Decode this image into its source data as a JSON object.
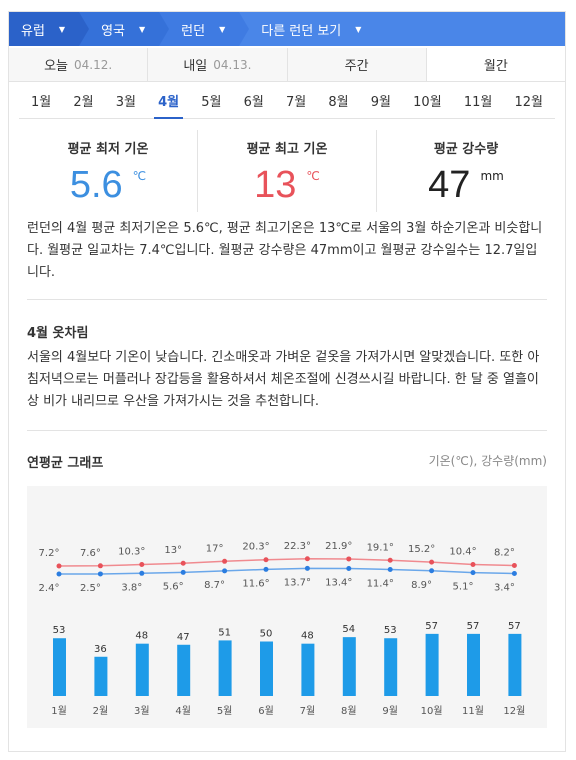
{
  "breadcrumb": [
    {
      "label": "유럽"
    },
    {
      "label": "영국"
    },
    {
      "label": "런던"
    },
    {
      "label": "다른 런던 보기"
    }
  ],
  "day_tabs": [
    {
      "label": "오늘",
      "date": "04.12."
    },
    {
      "label": "내일",
      "date": "04.13."
    },
    {
      "label": "주간",
      "date": ""
    },
    {
      "label": "월간",
      "date": ""
    }
  ],
  "months": [
    "1월",
    "2월",
    "3월",
    "4월",
    "5월",
    "6월",
    "7월",
    "8월",
    "9월",
    "10월",
    "11월",
    "12월"
  ],
  "active_month": "4월",
  "summary": {
    "min": {
      "label": "평균 최저 기온",
      "value": "5.6",
      "unit": "℃"
    },
    "max": {
      "label": "평균 최고 기온",
      "value": "13",
      "unit": "℃"
    },
    "rain": {
      "label": "평균 강수량",
      "value": "47",
      "unit": "mm"
    }
  },
  "description": "런던의 4월 평균 최저기온은 5.6℃, 평균 최고기온은 13℃로 서울의 3월 하순기온과 비슷합니다. 월평균 일교차는 7.4℃입니다. 월평균 강수량은 47mm이고 월평균 강수일수는 12.7일입니다.",
  "clothing": {
    "title": "4월 옷차림",
    "text": "서울의 4월보다 기온이 낮습니다. 긴소매옷과 가벼운 겉옷을 가져가시면 알맞겠습니다. 또한 아침저녁으로는 머플러나 장갑등을 활용하셔서 체온조절에 신경쓰시길 바랍니다. 한 달 중 열흘이상 비가 내리므로 우산을 가져가시는 것을 추천합니다."
  },
  "graph": {
    "title": "연평균 그래프",
    "note": "기온(℃), 강수량(mm)"
  },
  "colors": {
    "accent": "#2b62c9",
    "max_line": "#f08a8f",
    "min_line": "#6aa7ea",
    "bar": "#1e9be8"
  },
  "chart_data": {
    "type": "bar",
    "categories": [
      "1월",
      "2월",
      "3월",
      "4월",
      "5월",
      "6월",
      "7월",
      "8월",
      "9월",
      "10월",
      "11월",
      "12월"
    ],
    "series": [
      {
        "name": "최고 기온",
        "type": "line",
        "values": [
          7.2,
          7.6,
          10.3,
          13,
          17,
          20.3,
          22.3,
          21.9,
          19.1,
          15.2,
          10.4,
          8.2
        ],
        "labels": [
          "7.2°",
          "7.6°",
          "10.3°",
          "13°",
          "17°",
          "20.3°",
          "22.3°",
          "21.9°",
          "19.1°",
          "15.2°",
          "10.4°",
          "8.2°"
        ]
      },
      {
        "name": "최저 기온",
        "type": "line",
        "values": [
          2.4,
          2.5,
          3.8,
          5.6,
          8.7,
          11.6,
          13.7,
          13.4,
          11.4,
          8.9,
          5.1,
          3.4
        ],
        "labels": [
          "2.4°",
          "2.5°",
          "3.8°",
          "5.6°",
          "8.7°",
          "11.6°",
          "13.7°",
          "13.4°",
          "11.4°",
          "8.9°",
          "5.1°",
          "3.4°"
        ]
      },
      {
        "name": "강수량",
        "type": "bar",
        "values": [
          53,
          36,
          48,
          47,
          51,
          50,
          48,
          54,
          53,
          57,
          57,
          57
        ]
      }
    ],
    "grid": false
  }
}
